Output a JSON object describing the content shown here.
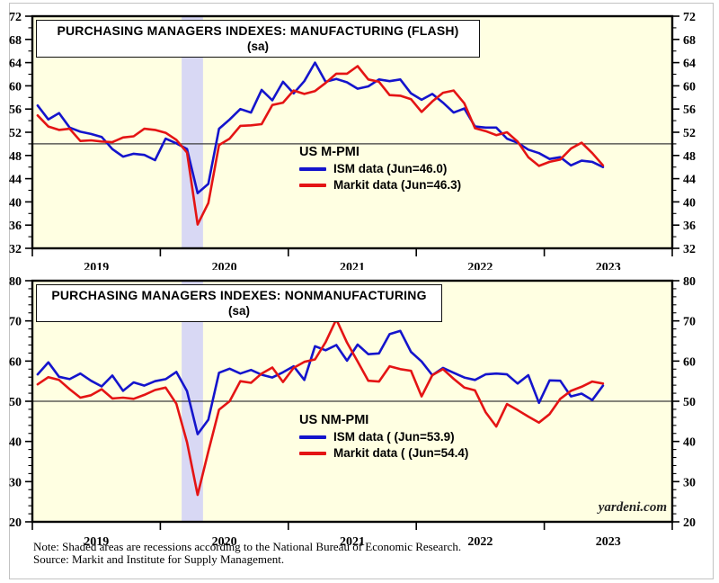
{
  "colors": {
    "ism_line": "#1414CC",
    "markit_line": "#E41414",
    "plot_background": "#FFFFE2",
    "recession_band": "#D8D8F4",
    "reference_line": "#3C3C3C",
    "frame": "#000000"
  },
  "watermark": "yardeni.com",
  "notes": {
    "line1": "Note: Shaded areas are recessions according to the National Bureau of Economic Research.",
    "line2": "Source: Markit and Institute for Supply Management."
  },
  "chart_data": [
    {
      "type": "line",
      "title": "PURCHASING MANAGERS INDEXES: MANUFACTURING (FLASH)",
      "subtitle": "(sa)",
      "legend_title": "US M-PMI",
      "x_start": "2019-01",
      "x_total_months": 60,
      "x_tick_labels": [
        "2019",
        "2020",
        "2021",
        "2022",
        "2023"
      ],
      "ylim": [
        32,
        72
      ],
      "y_major_step": 4,
      "y_minor_step": 2,
      "ref_line_y": 50,
      "grid": false,
      "legend_position": "center-right-inside",
      "recession_band": {
        "start": "2020-03",
        "end": "2020-05"
      },
      "series": [
        {
          "name": "ISM data (Jun=46.0)",
          "color_key": "ism_line",
          "values": [
            56.6,
            54.2,
            55.3,
            52.8,
            52.1,
            51.7,
            51.2,
            49.1,
            47.8,
            48.3,
            48.1,
            47.2,
            50.9,
            50.1,
            49.1,
            41.5,
            43.1,
            52.6,
            54.2,
            56.0,
            55.4,
            59.3,
            57.5,
            60.7,
            58.7,
            60.8,
            64.0,
            60.7,
            61.2,
            60.6,
            59.5,
            59.9,
            61.1,
            60.8,
            61.1,
            58.7,
            57.6,
            58.6,
            57.1,
            55.4,
            56.1,
            53.0,
            52.8,
            52.8,
            50.9,
            50.2,
            49.0,
            48.4,
            47.4,
            47.7,
            46.3,
            47.1,
            46.9,
            46.0
          ]
        },
        {
          "name": "Markit data (Jun=46.3)",
          "color_key": "markit_line",
          "values": [
            54.9,
            53.0,
            52.4,
            52.6,
            50.5,
            50.6,
            50.4,
            50.3,
            51.1,
            51.3,
            52.6,
            52.4,
            51.9,
            50.7,
            48.5,
            36.1,
            39.8,
            49.8,
            50.9,
            53.1,
            53.2,
            53.4,
            56.7,
            57.1,
            59.2,
            58.6,
            59.1,
            60.5,
            62.1,
            62.1,
            63.4,
            61.1,
            60.7,
            58.4,
            58.3,
            57.7,
            55.5,
            57.3,
            58.8,
            59.2,
            57.0,
            52.7,
            52.2,
            51.5,
            52.0,
            50.4,
            47.7,
            46.2,
            46.9,
            47.3,
            49.2,
            50.2,
            48.4,
            46.3
          ]
        }
      ]
    },
    {
      "type": "line",
      "title": "PURCHASING MANAGERS INDEXES: NONMANUFACTURING",
      "subtitle": "(sa)",
      "legend_title": "US NM-PMI",
      "x_start": "2019-01",
      "x_total_months": 60,
      "x_tick_labels": [
        "2019",
        "2020",
        "2021",
        "2022",
        "2023"
      ],
      "ylim": [
        20,
        80
      ],
      "y_major_step": 10,
      "y_minor_step": 2,
      "ref_line_y": 50,
      "grid": false,
      "legend_position": "center-right-inside",
      "recession_band": {
        "start": "2020-03",
        "end": "2020-05"
      },
      "series": [
        {
          "name": "ISM data ( (Jun=53.9)",
          "color_key": "ism_line",
          "values": [
            56.7,
            59.7,
            56.1,
            55.5,
            56.9,
            55.1,
            53.7,
            56.4,
            52.6,
            54.7,
            53.9,
            55.0,
            55.5,
            57.3,
            52.5,
            41.8,
            45.4,
            57.1,
            58.1,
            56.9,
            57.8,
            56.6,
            55.9,
            57.2,
            58.7,
            55.3,
            63.7,
            62.7,
            64.0,
            60.1,
            64.1,
            61.7,
            61.9,
            66.7,
            67.5,
            62.3,
            59.9,
            56.5,
            58.3,
            57.1,
            55.9,
            55.3,
            56.7,
            56.9,
            56.7,
            54.4,
            56.5,
            49.6,
            55.2,
            55.1,
            51.2,
            51.9,
            50.3,
            53.9
          ]
        },
        {
          "name": "Markit data ( (Jun=54.4)",
          "color_key": "markit_line",
          "values": [
            54.2,
            56.0,
            55.3,
            53.0,
            50.9,
            51.5,
            53.0,
            50.7,
            50.9,
            50.6,
            51.6,
            52.8,
            53.4,
            49.4,
            39.8,
            26.7,
            37.5,
            47.9,
            50.0,
            55.0,
            54.6,
            56.9,
            58.4,
            54.8,
            58.3,
            59.8,
            60.4,
            64.7,
            70.4,
            64.6,
            59.9,
            55.1,
            54.9,
            58.7,
            58.0,
            57.6,
            51.2,
            56.5,
            58.0,
            55.6,
            53.4,
            52.7,
            47.3,
            43.7,
            49.3,
            47.8,
            46.2,
            44.7,
            46.8,
            50.6,
            52.6,
            53.6,
            54.9,
            54.4
          ]
        }
      ]
    }
  ]
}
